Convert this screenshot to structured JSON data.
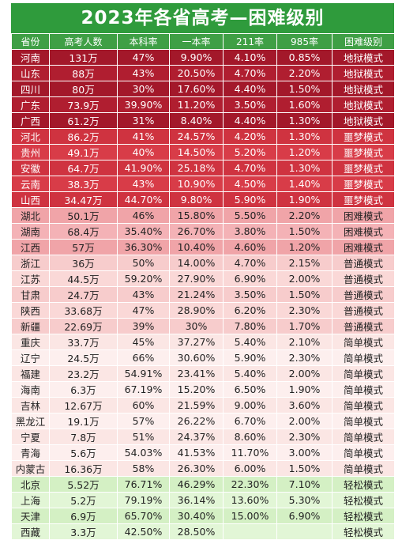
{
  "title": "2023年各省高考—困难级别",
  "headers": [
    "省份",
    "高考人数",
    "本科率",
    "一本率",
    "211率",
    "985率",
    "困难级别"
  ],
  "rows": [
    {
      "tier": "hell",
      "cells": [
        "河南",
        "131万",
        "47%",
        "9.90%",
        "4.10%",
        "0.85%",
        "地狱模式"
      ]
    },
    {
      "tier": "hell",
      "cells": [
        "山东",
        "88万",
        "43%",
        "20.50%",
        "4.70%",
        "2.20%",
        "地狱模式"
      ]
    },
    {
      "tier": "hell",
      "cells": [
        "四川",
        "80万",
        "30%",
        "17.60%",
        "4.40%",
        "1.50%",
        "地狱模式"
      ]
    },
    {
      "tier": "hell",
      "cells": [
        "广东",
        "73.9万",
        "39.90%",
        "11.20%",
        "3.50%",
        "1.60%",
        "地狱模式"
      ]
    },
    {
      "tier": "hell",
      "cells": [
        "广西",
        "61.2万",
        "31%",
        "8.40%",
        "4.40%",
        "1.30%",
        "地狱模式"
      ]
    },
    {
      "tier": "night",
      "cells": [
        "河北",
        "86.2万",
        "41%",
        "24.57%",
        "4.20%",
        "1.30%",
        "噩梦模式"
      ]
    },
    {
      "tier": "night",
      "cells": [
        "贵州",
        "49.1万",
        "40%",
        "14.50%",
        "5.20%",
        "1.20%",
        "噩梦模式"
      ]
    },
    {
      "tier": "night",
      "cells": [
        "安徽",
        "64.7万",
        "41.90%",
        "25.18%",
        "4.70%",
        "1.30%",
        "噩梦模式"
      ]
    },
    {
      "tier": "night",
      "cells": [
        "云南",
        "38.3万",
        "43%",
        "10.90%",
        "4.50%",
        "1.40%",
        "噩梦模式"
      ]
    },
    {
      "tier": "night",
      "cells": [
        "山西",
        "34.47万",
        "44.70%",
        "9.80%",
        "5.90%",
        "1.90%",
        "噩梦模式"
      ]
    },
    {
      "tier": "hard",
      "cells": [
        "湖北",
        "50.1万",
        "46%",
        "15.80%",
        "5.50%",
        "2.20%",
        "困难模式"
      ]
    },
    {
      "tier": "hard",
      "cells": [
        "湖南",
        "68.4万",
        "35.40%",
        "26.70%",
        "3.80%",
        "1.50%",
        "困难模式"
      ]
    },
    {
      "tier": "hard",
      "cells": [
        "江西",
        "57万",
        "36.30%",
        "10.40%",
        "4.60%",
        "1.20%",
        "困难模式"
      ]
    },
    {
      "tier": "normal",
      "cells": [
        "浙江",
        "36万",
        "50%",
        "14.00%",
        "4.70%",
        "2.15%",
        "普通模式"
      ]
    },
    {
      "tier": "normal",
      "cells": [
        "江苏",
        "44.5万",
        "59.20%",
        "27.90%",
        "6.90%",
        "2.00%",
        "普通模式"
      ]
    },
    {
      "tier": "normal",
      "cells": [
        "甘肃",
        "24.7万",
        "43%",
        "21.24%",
        "3.50%",
        "1.50%",
        "普通模式"
      ]
    },
    {
      "tier": "normal",
      "cells": [
        "陕西",
        "33.68万",
        "47%",
        "28.90%",
        "6.20%",
        "2.30%",
        "普通模式"
      ]
    },
    {
      "tier": "normal",
      "cells": [
        "新疆",
        "22.69万",
        "39%",
        "30%",
        "7.80%",
        "1.70%",
        "普通模式"
      ]
    },
    {
      "tier": "easy",
      "cells": [
        "重庆",
        "33.7万",
        "45%",
        "37.27%",
        "5.40%",
        "2.10%",
        "简单模式"
      ]
    },
    {
      "tier": "easy",
      "cells": [
        "辽宁",
        "24.5万",
        "66%",
        "30.60%",
        "5.90%",
        "2.30%",
        "简单模式"
      ]
    },
    {
      "tier": "easy",
      "cells": [
        "福建",
        "23.2万",
        "54.91%",
        "23.41%",
        "5.40%",
        "2.00%",
        "简单模式"
      ]
    },
    {
      "tier": "easy",
      "cells": [
        "海南",
        "6.3万",
        "67.19%",
        "15.20%",
        "6.50%",
        "1.90%",
        "简单模式"
      ]
    },
    {
      "tier": "easy",
      "cells": [
        "吉林",
        "12.67万",
        "60%",
        "21.59%",
        "9.00%",
        "3.60%",
        "简单模式"
      ]
    },
    {
      "tier": "easy",
      "cells": [
        "黑龙江",
        "19.1万",
        "57%",
        "26.22%",
        "6.70%",
        "2.00%",
        "简单模式"
      ]
    },
    {
      "tier": "easy",
      "cells": [
        "宁夏",
        "7.8万",
        "51%",
        "24.37%",
        "8.60%",
        "2.30%",
        "简单模式"
      ]
    },
    {
      "tier": "easy",
      "cells": [
        "青海",
        "5.6万",
        "54.03%",
        "41.53%",
        "11.70%",
        "3.00%",
        "简单模式"
      ]
    },
    {
      "tier": "easy",
      "cells": [
        "内蒙古",
        "16.36万",
        "58%",
        "26.30%",
        "6.00%",
        "1.50%",
        "简单模式"
      ]
    },
    {
      "tier": "relax",
      "cells": [
        "北京",
        "5.52万",
        "76.71%",
        "46.29%",
        "22.30%",
        "7.10%",
        "轻松模式"
      ]
    },
    {
      "tier": "relax",
      "cells": [
        "上海",
        "5.2万",
        "79.19%",
        "36.14%",
        "13.60%",
        "5.30%",
        "轻松模式"
      ]
    },
    {
      "tier": "relax",
      "cells": [
        "天津",
        "6.9万",
        "65.70%",
        "30.40%",
        "15.00%",
        "6.90%",
        "轻松模式"
      ]
    },
    {
      "tier": "relax",
      "cells": [
        "西藏",
        "3.3万",
        "42.50%",
        "28.50%",
        "",
        "",
        "轻松模式"
      ]
    }
  ]
}
